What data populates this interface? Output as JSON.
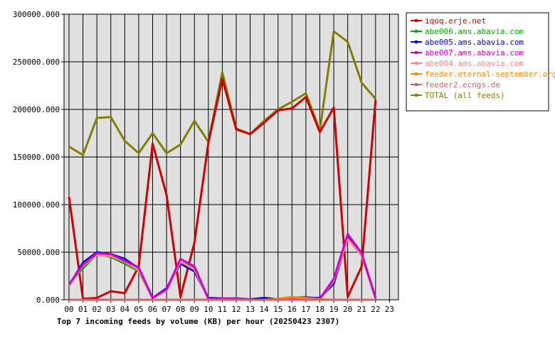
{
  "chart_data": {
    "type": "line",
    "title": "Top 7 incoming feeds by volume (KB) per hour (20250423 2307)",
    "x_ticks": [
      "00",
      "01",
      "02",
      "03",
      "04",
      "05",
      "06",
      "07",
      "08",
      "09",
      "10",
      "11",
      "12",
      "13",
      "14",
      "15",
      "16",
      "17",
      "18",
      "19",
      "20",
      "21",
      "22",
      "23"
    ],
    "y_ticks": [
      "0.000",
      "50000.000",
      "100000.000",
      "150000.000",
      "200000.000",
      "250000.000",
      "300000.000"
    ],
    "ylim": [
      0,
      300000
    ],
    "grid": true,
    "legend_position": "right",
    "series": [
      {
        "name": "iqoq.erje.net",
        "color": "#cc0000",
        "values": [
          108000,
          1000,
          2000,
          9000,
          7000,
          35000,
          164000,
          110000,
          3000,
          60000,
          165000,
          232000,
          179000,
          174000,
          186000,
          199000,
          201000,
          213000,
          176000,
          202000,
          3000,
          35000,
          210000
        ]
      },
      {
        "name": "abe006.ams.abavia.com",
        "color": "#00aa00",
        "values": [
          17000,
          33000,
          48000,
          45000,
          38000,
          30000,
          2000,
          10000,
          40000,
          33000,
          1000,
          1000,
          1000,
          0,
          0,
          500,
          2000,
          3000,
          1000,
          20000,
          65000,
          48000,
          2000
        ]
      },
      {
        "name": "abe005.ams.abavia.com",
        "color": "#0000cc",
        "values": [
          15000,
          39000,
          50000,
          48000,
          43000,
          33000,
          2000,
          12000,
          38000,
          30000,
          2000,
          1500,
          1500,
          500,
          2000,
          500,
          1500,
          2000,
          2000,
          17000,
          65000,
          47000,
          2000
        ]
      },
      {
        "name": "abe007.ams.abavia.com",
        "color": "#cc00cc",
        "values": [
          16000,
          37000,
          49000,
          48000,
          41000,
          34000,
          2000,
          11000,
          43000,
          35000,
          1000,
          1500,
          1500,
          0,
          0,
          500,
          2000,
          2000,
          1000,
          22000,
          69000,
          49000,
          2000
        ]
      },
      {
        "name": "abe004.ams.abavia.com",
        "color": "#ff8888",
        "values": [
          15000,
          36000,
          47000,
          46000,
          40000,
          31000,
          2000,
          10000,
          40000,
          32000,
          1000,
          1000,
          1000,
          0,
          0,
          500,
          2000,
          2000,
          1000,
          20000,
          64000,
          46000,
          2000
        ]
      },
      {
        "name": "feeder.eternal-september.org",
        "color": "#ff8800",
        "values": [
          0,
          0,
          0,
          0,
          0,
          0,
          0,
          0,
          0,
          0,
          0,
          0,
          0,
          0,
          0,
          1000,
          3000,
          1500,
          500,
          0,
          0,
          0,
          0
        ]
      },
      {
        "name": "feeder2.ecngs.de",
        "color": "#cc6666",
        "values": [
          0,
          0,
          0,
          0,
          0,
          0,
          0,
          0,
          0,
          0,
          0,
          0,
          0,
          0,
          0,
          0,
          0,
          0,
          0,
          0,
          0,
          0,
          0
        ]
      },
      {
        "name": "TOTAL (all feeds)",
        "color": "#808000",
        "values": [
          161000,
          152000,
          191000,
          192000,
          167000,
          154000,
          175000,
          154000,
          163000,
          188000,
          166000,
          239000,
          180000,
          174000,
          188000,
          200000,
          208000,
          217000,
          178000,
          282000,
          271000,
          228000,
          211000
        ]
      }
    ]
  }
}
